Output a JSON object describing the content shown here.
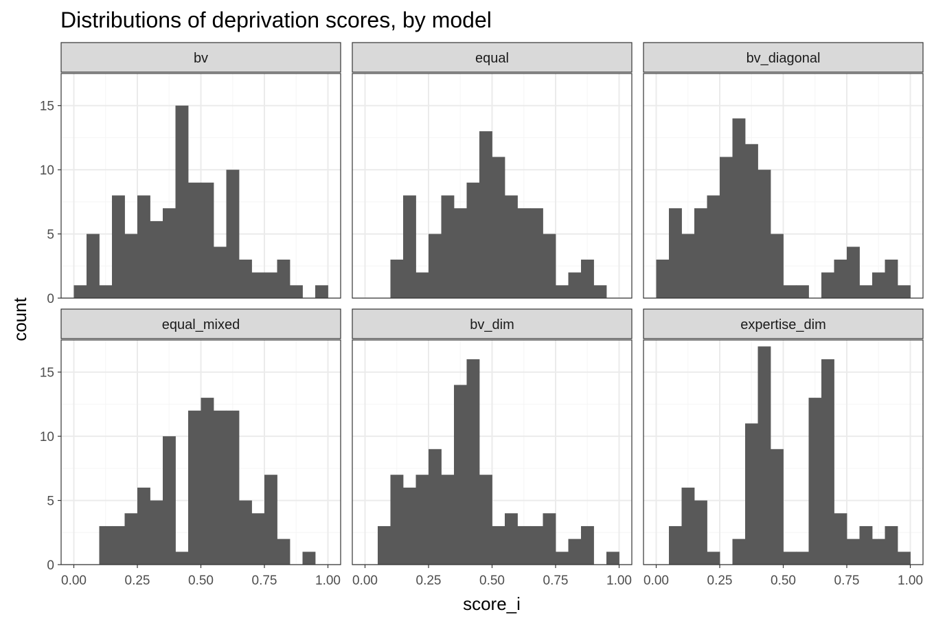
{
  "chart_data": {
    "type": "bar",
    "title": "Distributions of deprivation scores, by model",
    "xlabel": "score_i",
    "ylabel": "count",
    "xlim": [
      0,
      1
    ],
    "ylim": [
      0,
      17.5
    ],
    "bin_width": 0.05,
    "bin_starts": [
      0.0,
      0.05,
      0.1,
      0.15,
      0.2,
      0.25,
      0.3,
      0.35,
      0.4,
      0.45,
      0.5,
      0.55,
      0.6,
      0.65,
      0.7,
      0.75,
      0.8,
      0.85,
      0.9,
      0.95
    ],
    "x_ticks": [
      0,
      0.25,
      0.5,
      0.75,
      1
    ],
    "x_tick_labels": [
      "0.00",
      "0.25",
      "0.50",
      "0.75",
      "1.00"
    ],
    "y_ticks": [
      0,
      5,
      10,
      15
    ],
    "y_tick_labels": [
      "0",
      "5",
      "10",
      "15"
    ],
    "grid": true,
    "panels": [
      {
        "name": "bv",
        "counts": [
          1,
          5,
          1,
          8,
          5,
          8,
          6,
          7,
          15,
          9,
          9,
          4,
          10,
          3,
          2,
          2,
          3,
          1,
          0,
          1
        ]
      },
      {
        "name": "equal",
        "counts": [
          0,
          0,
          3,
          8,
          2,
          5,
          8,
          7,
          9,
          13,
          11,
          8,
          7,
          7,
          5,
          1,
          2,
          3,
          1,
          0
        ]
      },
      {
        "name": "bv_diagonal",
        "counts": [
          3,
          7,
          5,
          7,
          8,
          11,
          14,
          12,
          10,
          5,
          1,
          1,
          0,
          2,
          3,
          4,
          1,
          2,
          3,
          1
        ]
      },
      {
        "name": "equal_mixed",
        "counts": [
          0,
          0,
          3,
          3,
          4,
          6,
          5,
          10,
          1,
          12,
          13,
          12,
          12,
          5,
          4,
          7,
          2,
          0,
          1,
          0
        ]
      },
      {
        "name": "bv_dim",
        "counts": [
          0,
          3,
          7,
          6,
          7,
          9,
          7,
          14,
          16,
          7,
          3,
          4,
          3,
          3,
          4,
          1,
          2,
          3,
          0,
          1
        ]
      },
      {
        "name": "expertise_dim",
        "counts": [
          0,
          3,
          6,
          5,
          1,
          0,
          2,
          11,
          17,
          9,
          1,
          1,
          13,
          16,
          4,
          2,
          3,
          2,
          3,
          1
        ]
      }
    ]
  },
  "colors": {
    "bar": "#595959",
    "strip_fill": "#d9d9d9",
    "strip_border": "#333333",
    "panel_border": "#333333",
    "grid_major": "#ebebeb",
    "grid_minor": "#f5f5f5",
    "tick_text": "#4d4d4d"
  }
}
